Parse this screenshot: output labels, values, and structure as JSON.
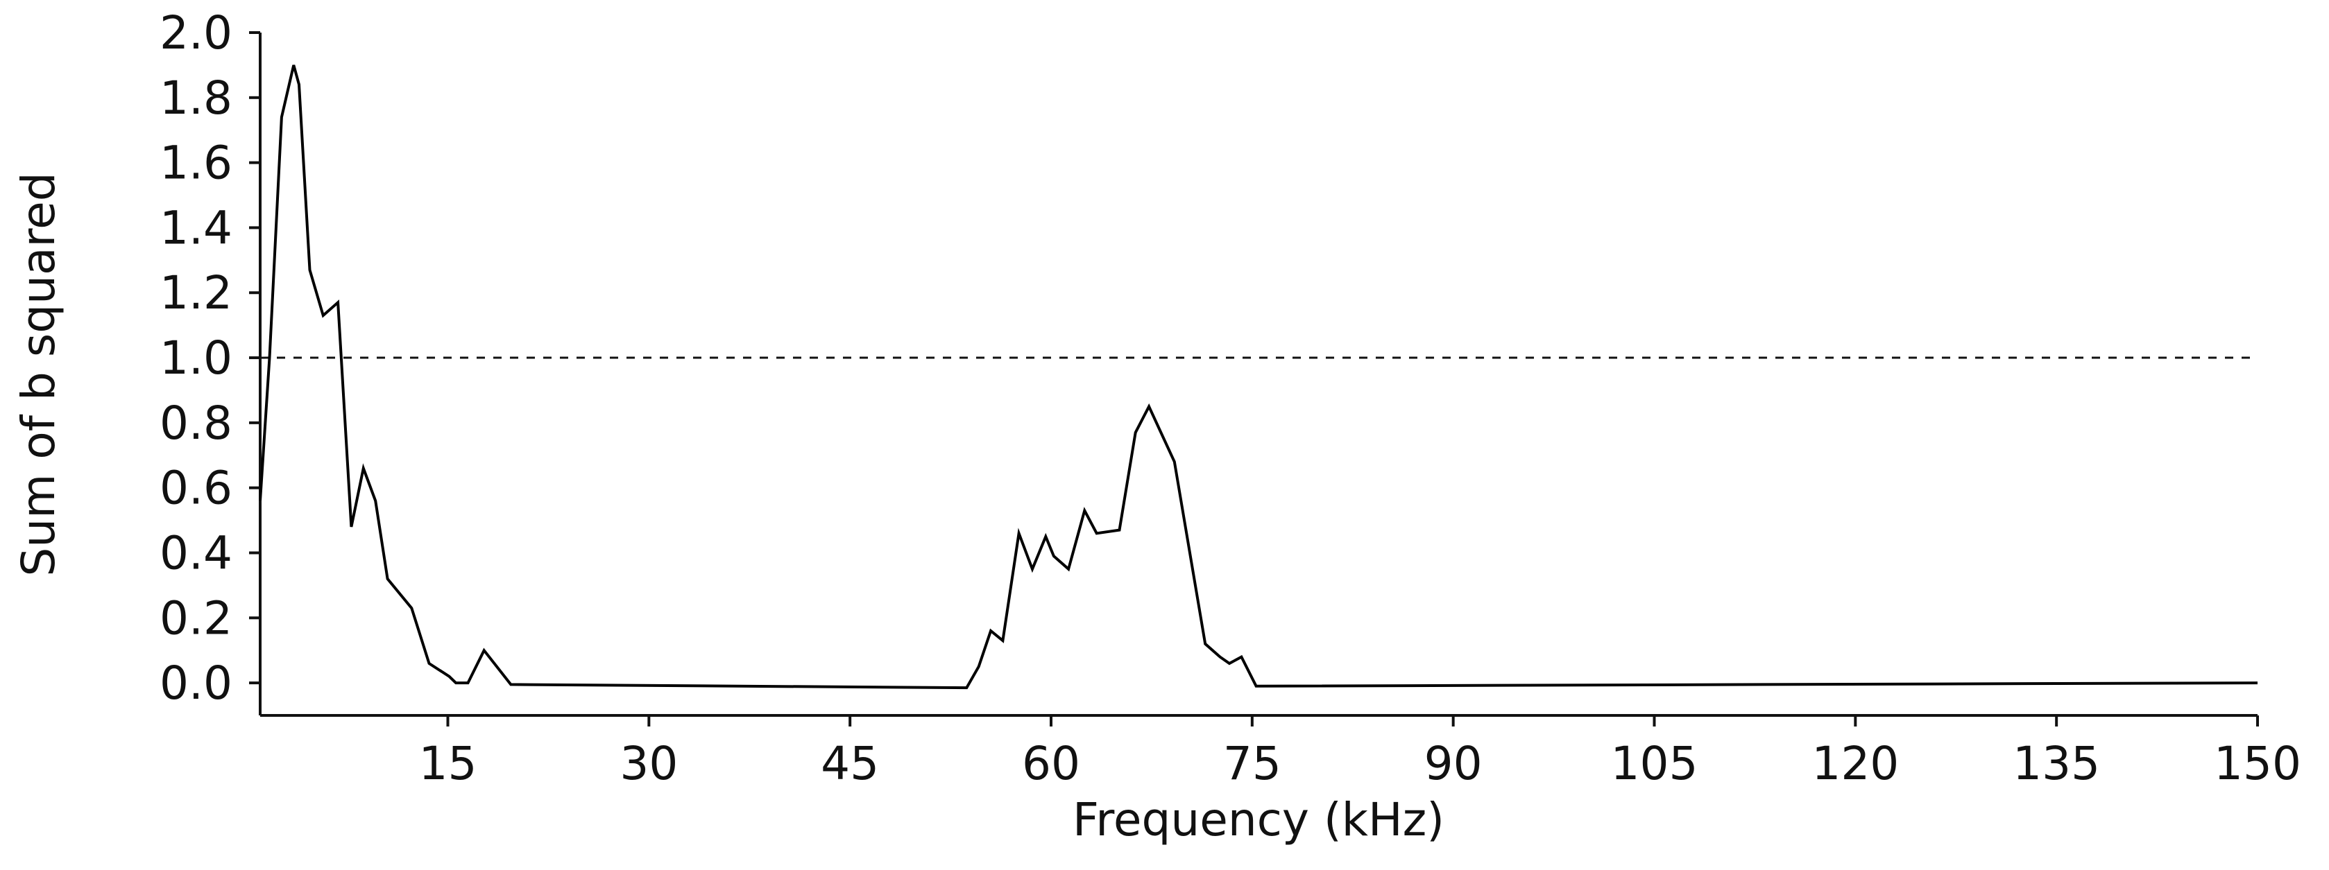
{
  "chart_data": {
    "type": "line",
    "x_label": "Frequency (kHz)",
    "y_label": "Sum of b squared",
    "x": [
      1,
      1.7,
      2.6,
      3.5,
      3.9,
      4.7,
      5.7,
      6.8,
      7.8,
      8.7,
      9.6,
      10.5,
      12.3,
      13.6,
      15.1,
      15.6,
      16.5,
      17.7,
      19.7,
      53.7,
      54.6,
      55.5,
      56.4,
      57.6,
      58.6,
      59.6,
      60.2,
      61.3,
      62.5,
      63.4,
      65.1,
      66.3,
      67.3,
      69.2,
      71.5,
      72.6,
      73.3,
      74.2,
      75.3,
      150
    ],
    "series": [
      {
        "color": "#000000",
        "values": [
          0.56,
          1.0,
          1.74,
          1.9,
          1.84,
          1.27,
          1.13,
          1.17,
          0.48,
          0.66,
          0.56,
          0.32,
          0.23,
          0.06,
          0.02,
          0.0,
          0.0,
          0.1,
          -0.005,
          -0.015,
          0.05,
          0.16,
          0.13,
          0.46,
          0.35,
          0.45,
          0.39,
          0.35,
          0.53,
          0.46,
          0.47,
          0.77,
          0.85,
          0.68,
          0.12,
          0.08,
          0.06,
          0.08,
          -0.01,
          0.0
        ]
      }
    ],
    "reference_line": 1.0,
    "xlim": [
      1,
      150
    ],
    "ylim": [
      -0.1,
      2.0
    ],
    "xticks": [
      15,
      30,
      45,
      60,
      75,
      90,
      105,
      120,
      135,
      150
    ],
    "yticks": [
      {
        "value": 0,
        "label": "0.0"
      },
      0.2,
      0.4,
      0.6,
      0.8,
      {
        "value": 1,
        "label": "1.0"
      },
      1.2,
      1.4,
      1.6,
      1.8,
      {
        "value": 2,
        "label": "2.0"
      }
    ]
  }
}
